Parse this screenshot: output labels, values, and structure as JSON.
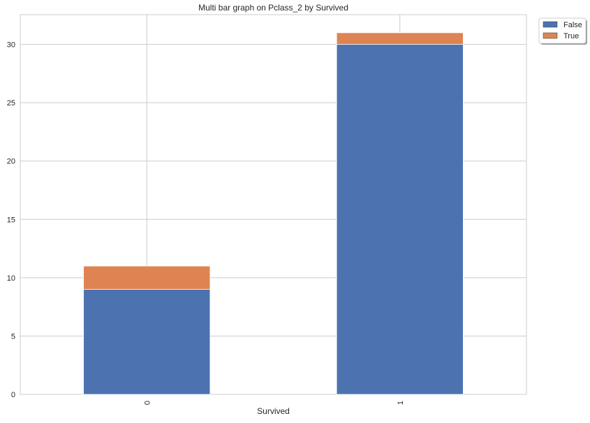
{
  "chart_data": {
    "type": "bar",
    "stacked": true,
    "title": "Multi bar graph on Pclass_2 by Survived",
    "xlabel": "Survived",
    "ylabel": "",
    "categories": [
      "0",
      "1"
    ],
    "series": [
      {
        "name": "False",
        "values": [
          9,
          30
        ],
        "color": "#4c72b0"
      },
      {
        "name": "True",
        "values": [
          2,
          1
        ],
        "color": "#dd8452"
      }
    ],
    "ylim": [
      0,
      32.55
    ],
    "yticks": [
      0,
      5,
      10,
      15,
      20,
      25,
      30
    ],
    "grid": true,
    "legend": {
      "placement": "top-right-outside"
    }
  }
}
